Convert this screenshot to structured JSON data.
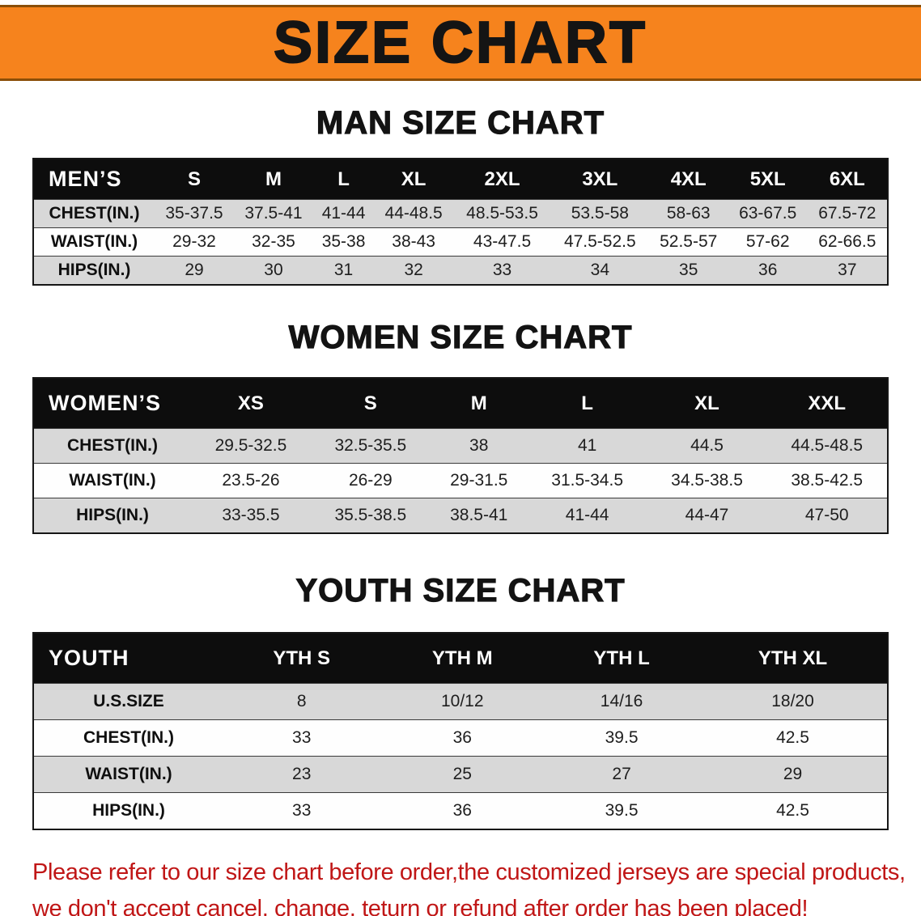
{
  "banner": {
    "title": "SIZE CHART",
    "bg_color": "#f6831d"
  },
  "sections": [
    {
      "id": "mens",
      "title": "MAN SIZE CHART",
      "table": {
        "corner_label": "MEN’S",
        "columns": [
          "S",
          "M",
          "L",
          "XL",
          "2XL",
          "3XL",
          "4XL",
          "5XL",
          "6XL"
        ],
        "rows": [
          {
            "label": "CHEST(IN.)",
            "values": [
              "35-37.5",
              "37.5-41",
              "41-44",
              "44-48.5",
              "48.5-53.5",
              "53.5-58",
              "58-63",
              "63-67.5",
              "67.5-72"
            ]
          },
          {
            "label": "WAIST(IN.)",
            "values": [
              "29-32",
              "32-35",
              "35-38",
              "38-43",
              "43-47.5",
              "47.5-52.5",
              "52.5-57",
              "57-62",
              "62-66.5"
            ]
          },
          {
            "label": "HIPS(IN.)",
            "values": [
              "29",
              "30",
              "31",
              "32",
              "33",
              "34",
              "35",
              "36",
              "37"
            ]
          }
        ]
      }
    },
    {
      "id": "womens",
      "title": "WOMEN SIZE CHART",
      "table": {
        "corner_label": "WOMEN’S",
        "columns": [
          "XS",
          "S",
          "M",
          "L",
          "XL",
          "XXL"
        ],
        "rows": [
          {
            "label": "CHEST(IN.)",
            "values": [
              "29.5-32.5",
              "32.5-35.5",
              "38",
              "41",
              "44.5",
              "44.5-48.5"
            ]
          },
          {
            "label": "WAIST(IN.)",
            "values": [
              "23.5-26",
              "26-29",
              "29-31.5",
              "31.5-34.5",
              "34.5-38.5",
              "38.5-42.5"
            ]
          },
          {
            "label": "HIPS(IN.)",
            "values": [
              "33-35.5",
              "35.5-38.5",
              "38.5-41",
              "41-44",
              "44-47",
              "47-50"
            ]
          }
        ]
      }
    },
    {
      "id": "youth",
      "title": "YOUTH SIZE CHART",
      "table": {
        "corner_label": "YOUTH",
        "columns": [
          "YTH S",
          "YTH M",
          "YTH L",
          "YTH XL"
        ],
        "rows": [
          {
            "label": "U.S.SIZE",
            "values": [
              "8",
              "10/12",
              "14/16",
              "18/20"
            ]
          },
          {
            "label": "CHEST(IN.)",
            "values": [
              "33",
              "36",
              "39.5",
              "42.5"
            ]
          },
          {
            "label": "WAIST(IN.)",
            "values": [
              "23",
              "25",
              "27",
              "29"
            ]
          },
          {
            "label": "HIPS(IN.)",
            "values": [
              "33",
              "36",
              "39.5",
              "42.5"
            ]
          }
        ]
      }
    }
  ],
  "footer": {
    "lines": [
      "Please refer to our size chart before order,the customized jerseys are special products,",
      "we don't accept cancel, change, teturn or refund after order has been placed!"
    ],
    "text_color": "#c01616"
  }
}
